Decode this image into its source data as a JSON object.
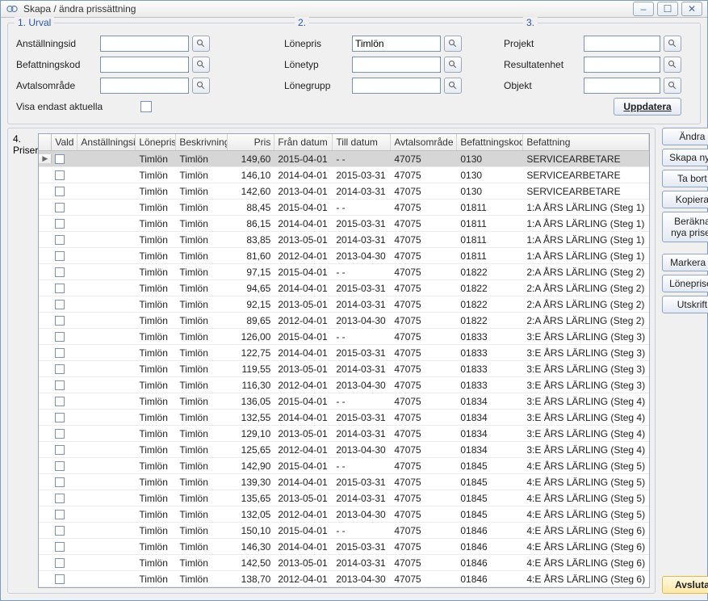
{
  "window": {
    "title": "Skapa / ändra prissättning",
    "buttons": {
      "min": "–",
      "max": "☐",
      "close": "✕"
    }
  },
  "colors": {
    "link": "#2a56b5",
    "border": "#c8d0dc",
    "input_border": "#7a93b5",
    "button_grad_top": "#fefefe",
    "button_grad_bot": "#e3eaf3",
    "primary_top": "#fff7e0",
    "primary_bot": "#ffe9a8",
    "sel_row": "#d6d6d6",
    "grid_border": "#9aa7b8"
  },
  "sections": {
    "urval": "1. Urval",
    "s2": "2.",
    "s3": "3.",
    "priser": "4. Priser"
  },
  "filters": {
    "col1": {
      "anstallningsid": {
        "label": "Anställningsid",
        "value": ""
      },
      "befattningskod": {
        "label": "Befattningskod",
        "value": ""
      },
      "avtalsomrade": {
        "label": "Avtalsområde",
        "value": ""
      },
      "visa_endast": {
        "label": "Visa endast aktuella",
        "checked": false
      }
    },
    "col2": {
      "lonepris": {
        "label": "Lönepris",
        "value": "Timlön"
      },
      "lonetyp": {
        "label": "Lönetyp",
        "value": ""
      },
      "lonegrupp": {
        "label": "Lönegrupp",
        "value": ""
      }
    },
    "col3": {
      "projekt": {
        "label": "Projekt",
        "value": ""
      },
      "resultatenhet": {
        "label": "Resultatenhet",
        "value": ""
      },
      "objekt": {
        "label": "Objekt",
        "value": ""
      }
    },
    "uppdatera": "Uppdatera"
  },
  "columns": {
    "vald": "Vald",
    "anstallningsid": "Anställningsid",
    "lonepris": "Lönepris",
    "beskrivning": "Beskrivning",
    "pris": "Pris",
    "fran": "Från datum",
    "till": "Till datum",
    "avtalsomrade": "Avtalsområde",
    "befattningskod": "Befattningskod",
    "befattning": "Befattning"
  },
  "rows": [
    {
      "sel": true,
      "lonepris": "Timlön",
      "besk": "Timlön",
      "pris": "149,60",
      "fran": "2015-04-01",
      "till": "- -",
      "avt": "47075",
      "kod": "0130",
      "befn": "SERVICEARBETARE"
    },
    {
      "lonepris": "Timlön",
      "besk": "Timlön",
      "pris": "146,10",
      "fran": "2014-04-01",
      "till": "2015-03-31",
      "avt": "47075",
      "kod": "0130",
      "befn": "SERVICEARBETARE"
    },
    {
      "lonepris": "Timlön",
      "besk": "Timlön",
      "pris": "142,60",
      "fran": "2013-04-01",
      "till": "2014-03-31",
      "avt": "47075",
      "kod": "0130",
      "befn": "SERVICEARBETARE"
    },
    {
      "lonepris": "Timlön",
      "besk": "Timlön",
      "pris": "88,45",
      "fran": "2015-04-01",
      "till": "- -",
      "avt": "47075",
      "kod": "01811",
      "befn": "1:A ÅRS LÄRLING (Steg 1)"
    },
    {
      "lonepris": "Timlön",
      "besk": "Timlön",
      "pris": "86,15",
      "fran": "2014-04-01",
      "till": "2015-03-31",
      "avt": "47075",
      "kod": "01811",
      "befn": "1:A ÅRS LÄRLING (Steg 1)"
    },
    {
      "lonepris": "Timlön",
      "besk": "Timlön",
      "pris": "83,85",
      "fran": "2013-05-01",
      "till": "2014-03-31",
      "avt": "47075",
      "kod": "01811",
      "befn": "1:A ÅRS LÄRLING (Steg 1)"
    },
    {
      "lonepris": "Timlön",
      "besk": "Timlön",
      "pris": "81,60",
      "fran": "2012-04-01",
      "till": "2013-04-30",
      "avt": "47075",
      "kod": "01811",
      "befn": "1:A ÅRS LÄRLING (Steg 1)"
    },
    {
      "lonepris": "Timlön",
      "besk": "Timlön",
      "pris": "97,15",
      "fran": "2015-04-01",
      "till": "- -",
      "avt": "47075",
      "kod": "01822",
      "befn": "2:A ÅRS LÄRLING (Steg 2)"
    },
    {
      "lonepris": "Timlön",
      "besk": "Timlön",
      "pris": "94,65",
      "fran": "2014-04-01",
      "till": "2015-03-31",
      "avt": "47075",
      "kod": "01822",
      "befn": "2:A ÅRS LÄRLING (Steg 2)"
    },
    {
      "lonepris": "Timlön",
      "besk": "Timlön",
      "pris": "92,15",
      "fran": "2013-05-01",
      "till": "2014-03-31",
      "avt": "47075",
      "kod": "01822",
      "befn": "2:A ÅRS LÄRLING (Steg 2)"
    },
    {
      "lonepris": "Timlön",
      "besk": "Timlön",
      "pris": "89,65",
      "fran": "2012-04-01",
      "till": "2013-04-30",
      "avt": "47075",
      "kod": "01822",
      "befn": "2:A ÅRS LÄRLING (Steg 2)"
    },
    {
      "lonepris": "Timlön",
      "besk": "Timlön",
      "pris": "126,00",
      "fran": "2015-04-01",
      "till": "- -",
      "avt": "47075",
      "kod": "01833",
      "befn": "3:E ÅRS LÄRLING (Steg 3)"
    },
    {
      "lonepris": "Timlön",
      "besk": "Timlön",
      "pris": "122,75",
      "fran": "2014-04-01",
      "till": "2015-03-31",
      "avt": "47075",
      "kod": "01833",
      "befn": "3:E ÅRS LÄRLING (Steg 3)"
    },
    {
      "lonepris": "Timlön",
      "besk": "Timlön",
      "pris": "119,55",
      "fran": "2013-05-01",
      "till": "2014-03-31",
      "avt": "47075",
      "kod": "01833",
      "befn": "3:E ÅRS LÄRLING (Steg 3)"
    },
    {
      "lonepris": "Timlön",
      "besk": "Timlön",
      "pris": "116,30",
      "fran": "2012-04-01",
      "till": "2013-04-30",
      "avt": "47075",
      "kod": "01833",
      "befn": "3:E ÅRS LÄRLING (Steg 3)"
    },
    {
      "lonepris": "Timlön",
      "besk": "Timlön",
      "pris": "136,05",
      "fran": "2015-04-01",
      "till": "- -",
      "avt": "47075",
      "kod": "01834",
      "befn": "3:E ÅRS LÄRLING (Steg 4)"
    },
    {
      "lonepris": "Timlön",
      "besk": "Timlön",
      "pris": "132,55",
      "fran": "2014-04-01",
      "till": "2015-03-31",
      "avt": "47075",
      "kod": "01834",
      "befn": "3:E ÅRS LÄRLING (Steg 4)"
    },
    {
      "lonepris": "Timlön",
      "besk": "Timlön",
      "pris": "129,10",
      "fran": "2013-05-01",
      "till": "2014-03-31",
      "avt": "47075",
      "kod": "01834",
      "befn": "3:E ÅRS LÄRLING (Steg 4)"
    },
    {
      "lonepris": "Timlön",
      "besk": "Timlön",
      "pris": "125,65",
      "fran": "2012-04-01",
      "till": "2013-04-30",
      "avt": "47075",
      "kod": "01834",
      "befn": "3:E ÅRS LÄRLING (Steg 4)"
    },
    {
      "lonepris": "Timlön",
      "besk": "Timlön",
      "pris": "142,90",
      "fran": "2015-04-01",
      "till": "- -",
      "avt": "47075",
      "kod": "01845",
      "befn": "4:E ÅRS LÄRLING (Steg 5)"
    },
    {
      "lonepris": "Timlön",
      "besk": "Timlön",
      "pris": "139,30",
      "fran": "2014-04-01",
      "till": "2015-03-31",
      "avt": "47075",
      "kod": "01845",
      "befn": "4:E ÅRS LÄRLING (Steg 5)"
    },
    {
      "lonepris": "Timlön",
      "besk": "Timlön",
      "pris": "135,65",
      "fran": "2013-05-01",
      "till": "2014-03-31",
      "avt": "47075",
      "kod": "01845",
      "befn": "4:E ÅRS LÄRLING (Steg 5)"
    },
    {
      "lonepris": "Timlön",
      "besk": "Timlön",
      "pris": "132,05",
      "fran": "2012-04-01",
      "till": "2013-04-30",
      "avt": "47075",
      "kod": "01845",
      "befn": "4:E ÅRS LÄRLING (Steg 5)"
    },
    {
      "lonepris": "Timlön",
      "besk": "Timlön",
      "pris": "150,10",
      "fran": "2015-04-01",
      "till": "- -",
      "avt": "47075",
      "kod": "01846",
      "befn": "4:E ÅRS LÄRLING (Steg 6)"
    },
    {
      "lonepris": "Timlön",
      "besk": "Timlön",
      "pris": "146,30",
      "fran": "2014-04-01",
      "till": "2015-03-31",
      "avt": "47075",
      "kod": "01846",
      "befn": "4:E ÅRS LÄRLING (Steg 6)"
    },
    {
      "lonepris": "Timlön",
      "besk": "Timlön",
      "pris": "142,50",
      "fran": "2013-05-01",
      "till": "2014-03-31",
      "avt": "47075",
      "kod": "01846",
      "befn": "4:E ÅRS LÄRLING (Steg 6)"
    },
    {
      "lonepris": "Timlön",
      "besk": "Timlön",
      "pris": "138,70",
      "fran": "2012-04-01",
      "till": "2013-04-30",
      "avt": "47075",
      "kod": "01846",
      "befn": "4:E ÅRS LÄRLING (Steg 6)"
    }
  ],
  "side_buttons": {
    "andra": "Ändra",
    "skapa": "Skapa nytt",
    "tabort": "Ta bort",
    "kopiera": "Kopiera",
    "berakna": "Beräkna nya priser",
    "markera": "Markera",
    "lonepriser": "Lönepriser",
    "utskrift": "Utskrift"
  },
  "footer": {
    "avsluta": "Avsluta"
  }
}
